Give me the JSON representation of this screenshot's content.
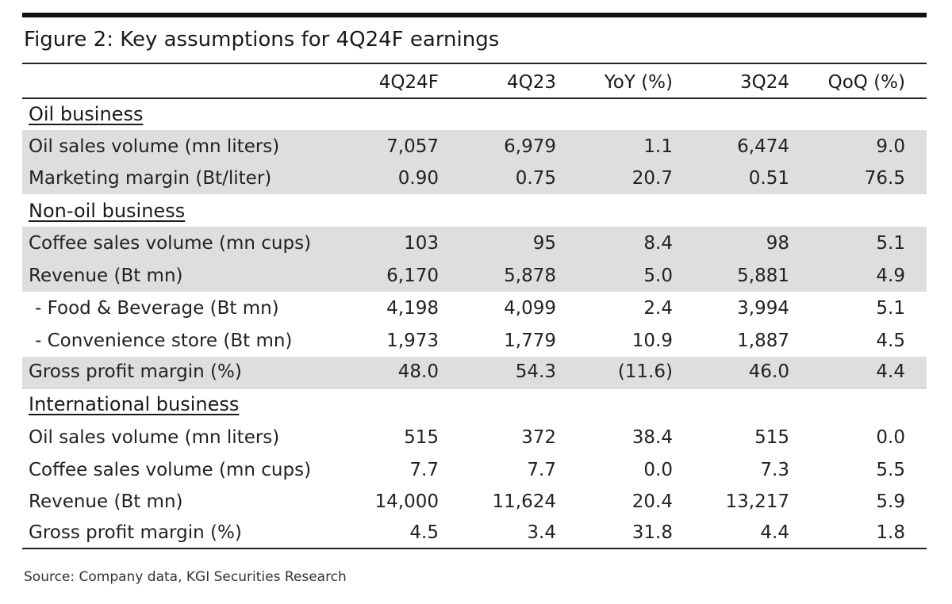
{
  "title": "Figure 2: Key assumptions for 4Q24F earnings",
  "columns": [
    "4Q24F",
    "4Q23",
    "YoY (%)",
    "3Q24",
    "QoQ (%)"
  ],
  "sections": [
    {
      "title": "Oil business",
      "rows": [
        {
          "label": "Oil sales volume (mn liters)",
          "values": [
            "7,057",
            "6,979",
            "1.1",
            "6,474",
            "9.0"
          ],
          "shaded": true
        },
        {
          "label": "Marketing margin (Bt/liter)",
          "values": [
            "0.90",
            "0.75",
            "20.7",
            "0.51",
            "76.5"
          ],
          "shaded": true
        }
      ]
    },
    {
      "title": "Non-oil business",
      "rows": [
        {
          "label": "Coffee sales volume (mn cups)",
          "values": [
            "103",
            "95",
            "8.4",
            "98",
            "5.1"
          ],
          "shaded": true
        },
        {
          "label": "Revenue (Bt mn)",
          "values": [
            "6,170",
            "5,878",
            "5.0",
            "5,881",
            "4.9"
          ],
          "shaded": true
        },
        {
          "label": "- Food & Beverage (Bt mn)",
          "values": [
            "4,198",
            "4,099",
            "2.4",
            "3,994",
            "5.1"
          ],
          "shaded": false
        },
        {
          "label": "- Convenience store (Bt mn)",
          "values": [
            "1,973",
            "1,779",
            "10.9",
            "1,887",
            "4.5"
          ],
          "shaded": false
        },
        {
          "label": "Gross profit margin (%)",
          "values": [
            "48.0",
            "54.3",
            "(11.6)",
            "46.0",
            "4.4"
          ],
          "shaded": true
        }
      ]
    },
    {
      "title": "International business",
      "rows": [
        {
          "label": "Oil sales volume (mn liters)",
          "values": [
            "515",
            "372",
            "38.4",
            "515",
            "0.0"
          ],
          "shaded": false
        },
        {
          "label": "Coffee sales volume (mn cups)",
          "values": [
            "7.7",
            "7.7",
            "0.0",
            "7.3",
            "5.5"
          ],
          "shaded": false
        },
        {
          "label": "Revenue (Bt mn)",
          "values": [
            "14,000",
            "11,624",
            "20.4",
            "13,217",
            "5.9"
          ],
          "shaded": false
        },
        {
          "label": "Gross profit margin (%)",
          "values": [
            "4.5",
            "3.4",
            "31.8",
            "4.4",
            "1.8"
          ],
          "shaded": false
        }
      ]
    }
  ],
  "source": "Source: Company data, KGI Securities Research"
}
